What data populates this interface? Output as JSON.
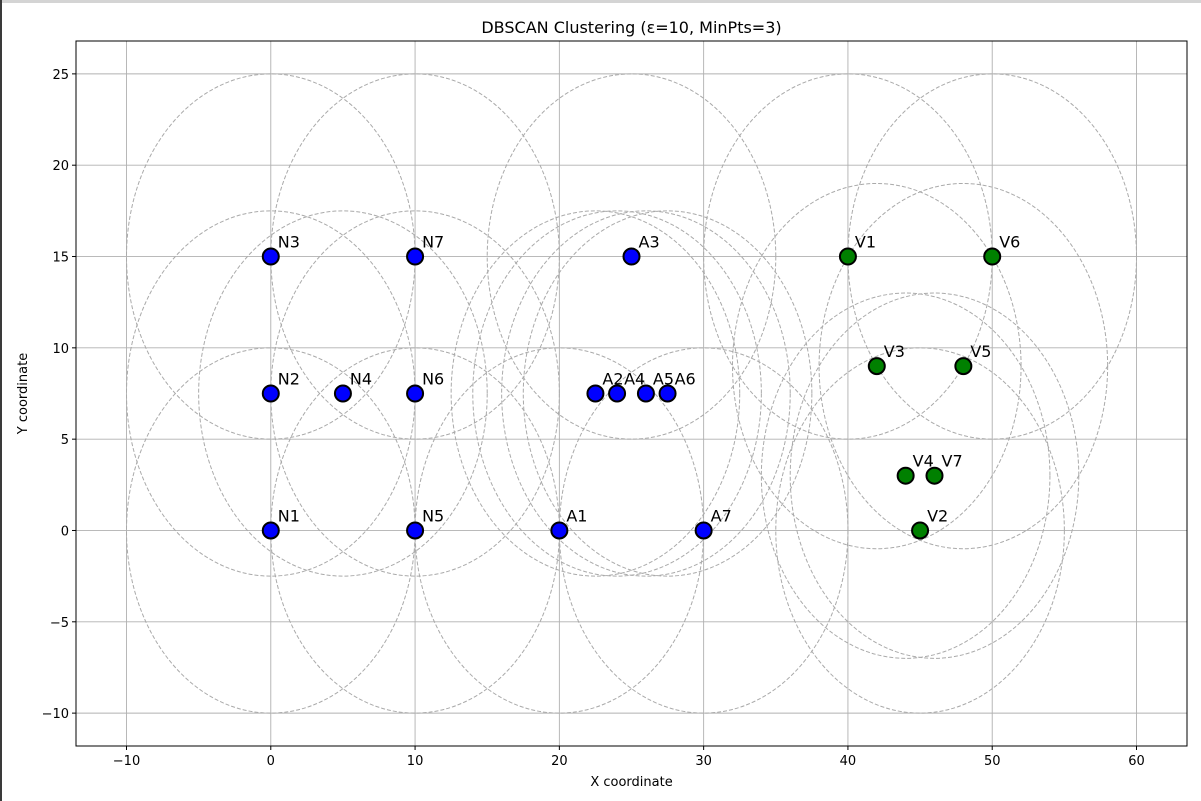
{
  "chart_data": {
    "type": "scatter",
    "title": "DBSCAN Clustering (ε=10, MinPts=3)",
    "xlabel": "X coordinate",
    "ylabel": "Y coordinate",
    "xlim": [
      -13.5,
      63.5
    ],
    "ylim": [
      -11.8,
      26.8
    ],
    "xticks": [
      -10,
      0,
      10,
      20,
      30,
      40,
      50,
      60
    ],
    "yticks": [
      -10,
      -5,
      0,
      5,
      10,
      15,
      20,
      25
    ],
    "xtick_labels": [
      "−10",
      "0",
      "10",
      "20",
      "30",
      "40",
      "50",
      "60"
    ],
    "ytick_labels": [
      "−10",
      "−5",
      "0",
      "5",
      "10",
      "15",
      "20",
      "25"
    ],
    "grid": true,
    "epsilon": 10,
    "circle_color": "#aaaaaa",
    "series": [
      {
        "color": "#0000ff",
        "points": [
          {
            "label": "N1",
            "x": 0,
            "y": 0
          },
          {
            "label": "N2",
            "x": 0,
            "y": 7.5
          },
          {
            "label": "N3",
            "x": 0,
            "y": 15
          },
          {
            "label": "N4",
            "x": 5,
            "y": 7.5
          },
          {
            "label": "N5",
            "x": 10,
            "y": 0
          },
          {
            "label": "N6",
            "x": 10,
            "y": 7.5
          },
          {
            "label": "N7",
            "x": 10,
            "y": 15
          },
          {
            "label": "A1",
            "x": 20,
            "y": 0
          },
          {
            "label": "A2",
            "x": 22.5,
            "y": 7.5
          },
          {
            "label": "A3",
            "x": 25,
            "y": 15
          },
          {
            "label": "A4",
            "x": 24,
            "y": 7.5
          },
          {
            "label": "A5",
            "x": 26,
            "y": 7.5
          },
          {
            "label": "A6",
            "x": 27.5,
            "y": 7.5
          },
          {
            "label": "A7",
            "x": 30,
            "y": 0
          }
        ]
      },
      {
        "color": "#008000",
        "points": [
          {
            "label": "V1",
            "x": 40,
            "y": 15
          },
          {
            "label": "V2",
            "x": 45,
            "y": 0
          },
          {
            "label": "V3",
            "x": 42,
            "y": 9
          },
          {
            "label": "V4",
            "x": 44,
            "y": 3
          },
          {
            "label": "V5",
            "x": 48,
            "y": 9
          },
          {
            "label": "V6",
            "x": 50,
            "y": 15
          },
          {
            "label": "V7",
            "x": 46,
            "y": 3
          }
        ]
      }
    ]
  }
}
